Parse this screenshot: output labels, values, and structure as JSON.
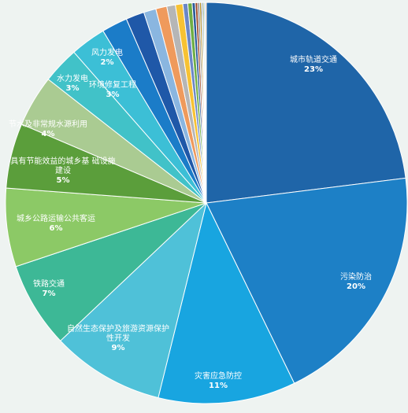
{
  "chart_data": {
    "type": "pie",
    "start": "12 o'clock",
    "direction": "clockwise",
    "slices": [
      {
        "label": "城市轨道交通",
        "pct_label": "23%",
        "value": 23.3,
        "color": "#1f65a8"
      },
      {
        "label": "污染防治",
        "pct_label": "20%",
        "value": 20.0,
        "color": "#1d80c6"
      },
      {
        "label": "灾害应急防控",
        "pct_label": "11%",
        "value": 11.2,
        "color": "#18a5e0"
      },
      {
        "label": "自然生态保护及旅游资源保护性开发",
        "label_lines": [
          "自然生态保护及旅游资源保护",
          "性开发"
        ],
        "pct_label": "9%",
        "value": 9.2,
        "color": "#4fc1d8"
      },
      {
        "label": "铁路交通",
        "pct_label": "7%",
        "value": 7.0,
        "color": "#3db896"
      },
      {
        "label": "城乡公路运输公共客运",
        "pct_label": "6%",
        "value": 6.4,
        "color": "#8cc966"
      },
      {
        "label": "具有节能效益的城乡基础设施建设",
        "label_lines": [
          "具有节能效益的城乡基 础设施",
          "建设"
        ],
        "pct_label": "5%",
        "value": 5.3,
        "color": "#5b9e3b"
      },
      {
        "label": "节水及非常规水源利用",
        "pct_label": "4%",
        "value": 4.2,
        "color": "#aacb92"
      },
      {
        "label": "水力发电",
        "pct_label": "3%",
        "value": 3.0,
        "color": "#41c2c8"
      },
      {
        "label": "环境修复工程",
        "pct_label": "3%",
        "value": 2.9,
        "color": "#3cbfd6"
      },
      {
        "label": "风力发电",
        "pct_label": "2%",
        "value": 2.1,
        "color": "#1b7cc8"
      },
      {
        "label": "",
        "value": 1.5,
        "color": "#1f58a8"
      },
      {
        "label": "",
        "value": 1.0,
        "color": "#8ab6e0"
      },
      {
        "label": "",
        "value": 0.9,
        "color": "#ef9a5c"
      },
      {
        "label": "",
        "value": 0.7,
        "color": "#b6b6b6"
      },
      {
        "label": "",
        "value": 0.6,
        "color": "#f7c233"
      },
      {
        "label": "",
        "value": 0.4,
        "color": "#6b87c6"
      },
      {
        "label": "",
        "value": 0.35,
        "color": "#6fae45"
      },
      {
        "label": "",
        "value": 0.25,
        "color": "#2a5a9a"
      },
      {
        "label": "",
        "value": 0.2,
        "color": "#9e4b2a"
      },
      {
        "label": "",
        "value": 0.15,
        "color": "#7a7a7a"
      },
      {
        "label": "",
        "value": 0.15,
        "color": "#b38a1a"
      },
      {
        "label": "",
        "value": 0.1,
        "color": "#3a5e96"
      },
      {
        "label": "",
        "value": 0.1,
        "color": "#4d7f2f"
      },
      {
        "label": "",
        "value": 0.1,
        "color": "#a9c7e6"
      },
      {
        "label": "",
        "value": 0.1,
        "color": "#f4b07a"
      }
    ]
  }
}
